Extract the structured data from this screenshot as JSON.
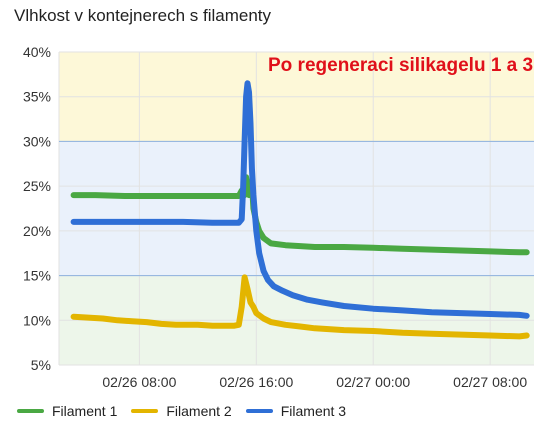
{
  "chart_data": {
    "type": "line",
    "title": "Vlhkost v kontejnerech s filamenty",
    "annotation": "Po regeneraci silikagelu 1 a 3",
    "xlabel": "",
    "ylabel": "",
    "ylim": [
      5,
      40
    ],
    "y_ticks": [
      "40%",
      "35%",
      "30%",
      "25%",
      "20%",
      "15%",
      "10%",
      "5%"
    ],
    "y_tick_values": [
      40,
      35,
      30,
      25,
      20,
      15,
      10,
      5
    ],
    "xlim_hours": [
      2.5,
      35
    ],
    "x_ticks": [
      "02/26 08:00",
      "02/26 16:00",
      "02/27 00:00",
      "02/27 08:00"
    ],
    "x_tick_hours": [
      8,
      16,
      24,
      32
    ],
    "bands": [
      {
        "from": 30,
        "to": 40,
        "color": "#fdf8d8"
      },
      {
        "from": 15,
        "to": 30,
        "color": "#eaf1fb"
      },
      {
        "from": 5,
        "to": 15,
        "color": "#edf6ea"
      }
    ],
    "threshold_lines": [
      30,
      15
    ],
    "grid": true,
    "legend_position": "bottom-left",
    "series": [
      {
        "name": "Filament 1",
        "color": "#4aa843",
        "points": [
          [
            3.5,
            24.0
          ],
          [
            5,
            24.0
          ],
          [
            7,
            23.9
          ],
          [
            9,
            23.9
          ],
          [
            11,
            23.9
          ],
          [
            13,
            23.9
          ],
          [
            14.8,
            23.9
          ],
          [
            15.0,
            24.5
          ],
          [
            15.2,
            24.0
          ],
          [
            15.3,
            26.0
          ],
          [
            15.5,
            24.0
          ],
          [
            15.7,
            25.5
          ],
          [
            15.8,
            22.5
          ],
          [
            16.0,
            21.0
          ],
          [
            16.2,
            20.0
          ],
          [
            16.5,
            19.2
          ],
          [
            17,
            18.6
          ],
          [
            18,
            18.4
          ],
          [
            19,
            18.3
          ],
          [
            20,
            18.2
          ],
          [
            22,
            18.2
          ],
          [
            24,
            18.1
          ],
          [
            26,
            18.0
          ],
          [
            28,
            17.9
          ],
          [
            30,
            17.8
          ],
          [
            32,
            17.7
          ],
          [
            34,
            17.6
          ],
          [
            34.5,
            17.6
          ]
        ]
      },
      {
        "name": "Filament 2",
        "color": "#e3b500",
        "points": [
          [
            3.5,
            10.4
          ],
          [
            4.5,
            10.3
          ],
          [
            5.5,
            10.2
          ],
          [
            6.5,
            10.0
          ],
          [
            7.5,
            9.9
          ],
          [
            8.5,
            9.8
          ],
          [
            9.5,
            9.6
          ],
          [
            10.5,
            9.5
          ],
          [
            12,
            9.5
          ],
          [
            13,
            9.4
          ],
          [
            14.5,
            9.4
          ],
          [
            14.8,
            9.5
          ],
          [
            15.0,
            11.5
          ],
          [
            15.2,
            14.8
          ],
          [
            15.4,
            13.5
          ],
          [
            15.6,
            12.0
          ],
          [
            15.8,
            11.5
          ],
          [
            16.0,
            10.8
          ],
          [
            16.5,
            10.2
          ],
          [
            17,
            9.8
          ],
          [
            18,
            9.5
          ],
          [
            19,
            9.3
          ],
          [
            20,
            9.1
          ],
          [
            22,
            8.9
          ],
          [
            24,
            8.8
          ],
          [
            26,
            8.6
          ],
          [
            28,
            8.5
          ],
          [
            30,
            8.4
          ],
          [
            32,
            8.3
          ],
          [
            34,
            8.2
          ],
          [
            34.5,
            8.3
          ]
        ]
      },
      {
        "name": "Filament 3",
        "color": "#2f6fd6",
        "points": [
          [
            3.5,
            21.0
          ],
          [
            5,
            21.0
          ],
          [
            7,
            21.0
          ],
          [
            9,
            21.0
          ],
          [
            11,
            21.0
          ],
          [
            13,
            20.9
          ],
          [
            14.8,
            20.9
          ],
          [
            15.0,
            21.3
          ],
          [
            15.1,
            25.0
          ],
          [
            15.2,
            30.0
          ],
          [
            15.3,
            35.0
          ],
          [
            15.4,
            36.5
          ],
          [
            15.5,
            35.5
          ],
          [
            15.6,
            32.0
          ],
          [
            15.7,
            27.0
          ],
          [
            15.8,
            24.0
          ],
          [
            16.0,
            20.0
          ],
          [
            16.2,
            17.5
          ],
          [
            16.5,
            15.5
          ],
          [
            16.8,
            14.5
          ],
          [
            17.2,
            13.8
          ],
          [
            17.8,
            13.3
          ],
          [
            18.5,
            12.8
          ],
          [
            19.5,
            12.3
          ],
          [
            20.5,
            12.0
          ],
          [
            22,
            11.6
          ],
          [
            24,
            11.3
          ],
          [
            26,
            11.1
          ],
          [
            28,
            10.9
          ],
          [
            30,
            10.8
          ],
          [
            32,
            10.7
          ],
          [
            34,
            10.6
          ],
          [
            34.5,
            10.5
          ]
        ]
      }
    ]
  }
}
